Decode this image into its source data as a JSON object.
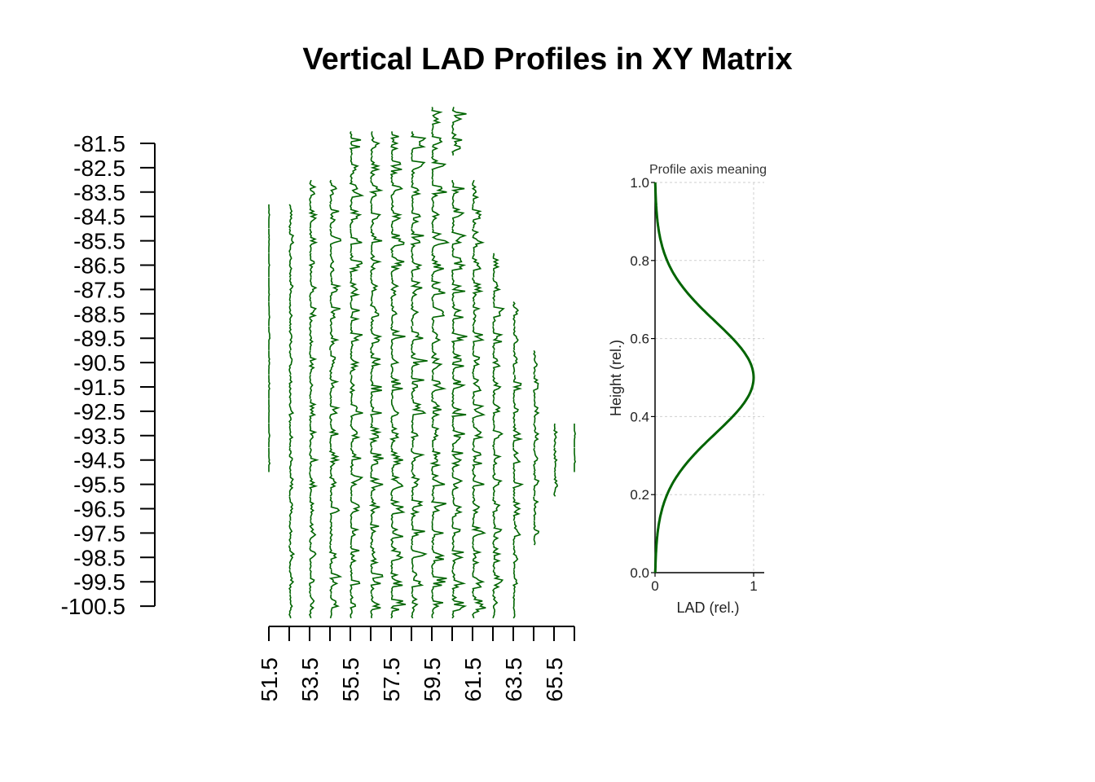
{
  "chart_data": {
    "type": "line",
    "title": "Vertical LAD Profiles in XY Matrix",
    "line_color": "#006400",
    "x_ticks": [
      "51.5",
      "53.5",
      "55.5",
      "57.5",
      "59.5",
      "61.5",
      "63.5",
      "65.5"
    ],
    "x_range": [
      51.5,
      66.5
    ],
    "y_ticks": [
      "-81.5",
      "-82.5",
      "-83.5",
      "-84.5",
      "-85.5",
      "-86.5",
      "-87.5",
      "-88.5",
      "-89.5",
      "-90.5",
      "-91.5",
      "-92.5",
      "-93.5",
      "-94.5",
      "-95.5",
      "-96.5",
      "-97.5",
      "-98.5",
      "-99.5",
      "-100.5"
    ],
    "y_range": [
      -81.5,
      -100.5
    ],
    "grid": {
      "x_start": 51.5,
      "y_start": -80.5,
      "step": 1,
      "rows": [
        "       33     ",
        "    7777777   ",
        "    7777770   ",
        "  79999999999 ",
        " 199999999999 ",
        " 1999999999999",
        " 1999999999999",
        " 1999999999999",
        " 1999999999999",
        " 1999999999999",
        " 1999999999999",
        " 1999999999999",
        " 1999999999999",
        " 1999999999999",
        " 1999999999999",
        "  99999999999 ",
        "  99999999999 ",
        "  99999999999 ",
        "  99999999999 ",
        "  99999999999 ",
        "  99999999999 "
      ],
      "row_masks": [
        [
          0,
          0,
          0,
          0,
          0,
          0,
          0,
          0,
          1,
          1,
          0,
          0,
          0,
          0,
          0,
          0
        ],
        [
          0,
          0,
          0,
          0,
          1,
          1,
          1,
          1,
          1,
          1,
          0,
          0,
          0,
          0,
          0,
          0
        ],
        [
          0,
          0,
          0,
          0,
          1,
          1,
          1,
          1,
          1,
          0,
          0,
          0,
          0,
          0,
          0,
          0
        ],
        [
          0,
          0,
          1,
          1,
          1,
          1,
          1,
          1,
          1,
          1,
          1,
          0,
          0,
          0,
          0,
          0
        ],
        [
          1,
          1,
          1,
          1,
          1,
          1,
          1,
          1,
          1,
          1,
          1,
          0,
          0,
          0,
          0,
          0
        ],
        [
          1,
          1,
          1,
          1,
          1,
          1,
          1,
          1,
          1,
          1,
          1,
          0,
          0,
          0,
          0,
          0
        ],
        [
          1,
          1,
          1,
          1,
          1,
          1,
          1,
          1,
          1,
          1,
          1,
          1,
          0,
          0,
          0,
          0
        ],
        [
          1,
          1,
          1,
          1,
          1,
          1,
          1,
          1,
          1,
          1,
          1,
          1,
          0,
          0,
          0,
          0
        ],
        [
          1,
          1,
          1,
          1,
          1,
          1,
          1,
          1,
          1,
          1,
          1,
          1,
          1,
          0,
          0,
          0
        ],
        [
          1,
          1,
          1,
          1,
          1,
          1,
          1,
          1,
          1,
          1,
          1,
          1,
          1,
          0,
          0,
          0
        ],
        [
          1,
          1,
          1,
          1,
          1,
          1,
          1,
          1,
          1,
          1,
          1,
          1,
          1,
          1,
          0,
          0
        ],
        [
          1,
          1,
          1,
          1,
          1,
          1,
          1,
          1,
          1,
          1,
          1,
          1,
          1,
          1,
          0,
          0
        ],
        [
          1,
          1,
          1,
          1,
          1,
          1,
          1,
          1,
          1,
          1,
          1,
          1,
          1,
          1,
          0,
          0
        ],
        [
          1,
          1,
          1,
          1,
          1,
          1,
          1,
          1,
          1,
          1,
          1,
          1,
          1,
          1,
          1,
          1
        ],
        [
          1,
          1,
          1,
          1,
          1,
          1,
          1,
          1,
          1,
          1,
          1,
          1,
          1,
          1,
          1,
          1
        ],
        [
          0,
          1,
          1,
          1,
          1,
          1,
          1,
          1,
          1,
          1,
          1,
          1,
          1,
          1,
          1,
          0
        ],
        [
          0,
          1,
          1,
          1,
          1,
          1,
          1,
          1,
          1,
          1,
          1,
          1,
          1,
          1,
          0,
          0
        ],
        [
          0,
          1,
          1,
          1,
          1,
          1,
          1,
          1,
          1,
          1,
          1,
          1,
          1,
          1,
          0,
          0
        ],
        [
          0,
          1,
          1,
          1,
          1,
          1,
          1,
          1,
          1,
          1,
          1,
          1,
          1,
          0,
          0,
          0
        ],
        [
          0,
          1,
          1,
          1,
          1,
          1,
          1,
          1,
          1,
          1,
          1,
          1,
          1,
          0,
          0,
          0
        ],
        [
          0,
          1,
          1,
          1,
          1,
          1,
          1,
          1,
          1,
          1,
          1,
          1,
          1,
          0,
          0,
          0
        ]
      ],
      "row_y_values": [
        -80.5,
        -81.5,
        -82.5,
        -83.5,
        -84.5,
        -85.5,
        -86.5,
        -87.5,
        -88.5,
        -89.5,
        -90.5,
        -91.5,
        -92.5,
        -93.5,
        -94.5,
        -95.5,
        -96.5,
        -97.5,
        -98.5,
        -99.5,
        -100.5
      ],
      "col_x_values": [
        51.5,
        52.5,
        53.5,
        54.5,
        55.5,
        56.5,
        57.5,
        58.5,
        59.5,
        60.5,
        61.5,
        62.5,
        63.5,
        64.5,
        65.5,
        66.5
      ],
      "profile_amplitude_by_col": [
        0.05,
        0.15,
        0.3,
        0.45,
        0.6,
        0.6,
        0.65,
        0.7,
        0.7,
        0.65,
        0.6,
        0.45,
        0.35,
        0.25,
        0.15,
        0.05
      ]
    },
    "inset": {
      "title": "Profile axis meaning",
      "xlabel": "LAD (rel.)",
      "ylabel": "Height (rel.)",
      "x_ticks": [
        "0",
        "1"
      ],
      "y_ticks": [
        "0.0",
        "0.2",
        "0.4",
        "0.6",
        "0.8",
        "1.0"
      ],
      "xlim": [
        0,
        1
      ],
      "ylim": [
        0,
        1
      ],
      "grid": true,
      "curve": {
        "y": [
          0,
          0.05,
          0.1,
          0.15,
          0.2,
          0.25,
          0.3,
          0.35,
          0.4,
          0.45,
          0.5,
          0.55,
          0.6,
          0.65,
          0.7,
          0.75,
          0.8,
          0.85,
          0.9,
          0.95,
          1
        ],
        "x": [
          0,
          0.09,
          0.11,
          0.12,
          0.16,
          0.25,
          0.41,
          0.6,
          0.8,
          0.95,
          1,
          0.95,
          0.8,
          0.6,
          0.41,
          0.25,
          0.16,
          0.12,
          0.11,
          0.09,
          0
        ]
      }
    }
  }
}
